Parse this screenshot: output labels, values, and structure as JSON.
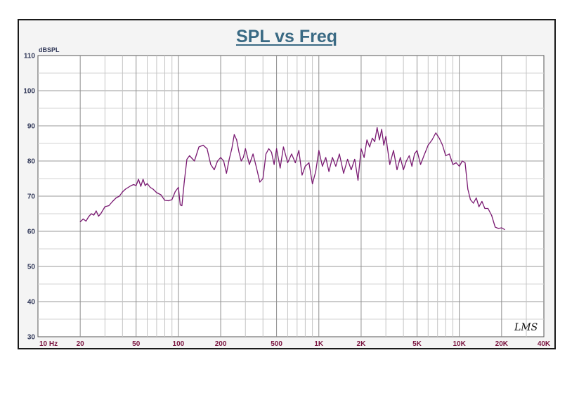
{
  "chart_data": {
    "type": "line",
    "title": "SPL vs Freq",
    "ylabel": "dBSPL",
    "xlabel": "",
    "x_scale": "log",
    "xlim": [
      10,
      40000
    ],
    "ylim": [
      30,
      110
    ],
    "y_ticks": [
      30,
      40,
      50,
      60,
      70,
      80,
      90,
      100,
      110
    ],
    "x_ticks": [
      {
        "value": 10,
        "label": "10  Hz"
      },
      {
        "value": 20,
        "label": "20"
      },
      {
        "value": 50,
        "label": "50"
      },
      {
        "value": 100,
        "label": "100"
      },
      {
        "value": 200,
        "label": "200"
      },
      {
        "value": 500,
        "label": "500"
      },
      {
        "value": 1000,
        "label": "1K"
      },
      {
        "value": 2000,
        "label": "2K"
      },
      {
        "value": 5000,
        "label": "5K"
      },
      {
        "value": 10000,
        "label": "10K"
      },
      {
        "value": 20000,
        "label": "20K"
      },
      {
        "value": 40000,
        "label": "40K"
      }
    ],
    "grid": true,
    "line_color": "#7a1a72",
    "series": [
      {
        "x": [
          20,
          21,
          22,
          23,
          24,
          25,
          26,
          27,
          28,
          30,
          32,
          34,
          36,
          38,
          40,
          42,
          44,
          46,
          48,
          50,
          52,
          54,
          56,
          58,
          60,
          63,
          66,
          70,
          75,
          80,
          85,
          90,
          95,
          100,
          103,
          106,
          110,
          115,
          120,
          130,
          140,
          150,
          160,
          170,
          180,
          190,
          200,
          210,
          220,
          230,
          240,
          250,
          260,
          270,
          280,
          290,
          300,
          320,
          340,
          360,
          380,
          400,
          420,
          440,
          460,
          480,
          500,
          530,
          560,
          600,
          640,
          680,
          720,
          760,
          800,
          850,
          900,
          950,
          1000,
          1060,
          1120,
          1180,
          1250,
          1320,
          1400,
          1500,
          1600,
          1700,
          1800,
          1900,
          2000,
          2100,
          2200,
          2300,
          2400,
          2500,
          2600,
          2700,
          2800,
          2900,
          3000,
          3200,
          3400,
          3600,
          3800,
          4000,
          4200,
          4400,
          4600,
          4800,
          5000,
          5300,
          5600,
          6000,
          6400,
          6800,
          7200,
          7600,
          8000,
          8500,
          9000,
          9500,
          10000,
          10500,
          11000,
          11500,
          12000,
          12600,
          13200,
          13800,
          14500,
          15200,
          16000,
          17000,
          18000,
          19000,
          20000,
          21000
        ],
        "y": [
          62.7,
          63.5,
          62.9,
          64.2,
          65.0,
          64.6,
          65.8,
          64.3,
          65.0,
          67.0,
          67.3,
          68.5,
          69.5,
          70.0,
          71.2,
          72.0,
          72.5,
          73.0,
          73.3,
          73.0,
          74.8,
          72.8,
          74.8,
          73.0,
          73.6,
          72.5,
          72.0,
          71.0,
          70.4,
          68.8,
          68.7,
          69.0,
          71.3,
          72.5,
          67.5,
          67.3,
          74.0,
          80.5,
          81.5,
          80.0,
          84.0,
          84.5,
          83.5,
          79.0,
          77.5,
          80.0,
          81.0,
          80.0,
          76.5,
          80.5,
          83.5,
          87.5,
          86.0,
          82.5,
          80.0,
          81.0,
          83.5,
          79.0,
          82.0,
          78.0,
          74.0,
          75.0,
          82.0,
          83.5,
          82.5,
          79.0,
          83.5,
          78.0,
          84.0,
          79.5,
          82.0,
          79.5,
          83.0,
          76.0,
          78.5,
          79.5,
          73.5,
          77.0,
          83.0,
          78.5,
          81.0,
          77.0,
          81.0,
          78.5,
          82.0,
          76.5,
          80.5,
          77.5,
          80.5,
          74.5,
          83.5,
          81.0,
          86.0,
          84.0,
          86.5,
          85.5,
          89.5,
          86.0,
          89.0,
          84.5,
          87.0,
          79.0,
          83.0,
          77.5,
          81.0,
          77.5,
          80.0,
          81.5,
          78.5,
          82.0,
          83.0,
          79.0,
          81.5,
          84.5,
          86.0,
          88.0,
          86.5,
          84.5,
          81.5,
          82.0,
          79.0,
          79.5,
          78.5,
          80.0,
          79.5,
          72.0,
          69.0,
          68.0,
          69.5,
          67.0,
          68.5,
          66.5,
          66.5,
          64.5,
          61.2,
          60.8,
          61.0,
          60.5
        ]
      }
    ],
    "watermark": "LMS"
  }
}
